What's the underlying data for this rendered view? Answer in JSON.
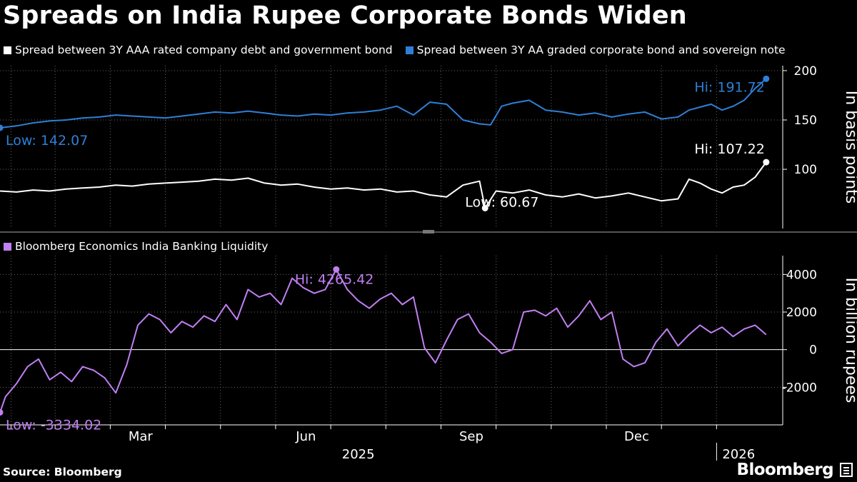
{
  "title": "Spreads on India Rupee Corporate Bonds Widen",
  "source": "Source: Bloomberg",
  "brand": "Bloomberg",
  "colors": {
    "white": "#ffffff",
    "blue": "#2f7fd6",
    "purple": "#c17ff2",
    "grid": "#666666"
  },
  "chart_data": [
    {
      "type": "line",
      "panel": "top",
      "ylabel": "In basis points",
      "ylim": [
        40,
        205
      ],
      "yticks": [
        100,
        150,
        200
      ],
      "x_range": [
        0,
        14.2
      ],
      "x_ticks": [
        {
          "pos": 3,
          "label": "Mar"
        },
        {
          "pos": 6,
          "label": "Jun"
        },
        {
          "pos": 9,
          "label": "Sep"
        },
        {
          "pos": 12,
          "label": "Dec"
        }
      ],
      "year_labels": [
        {
          "pos": 6.5,
          "label": "2025"
        },
        {
          "pos": 13.4,
          "label": "2026"
        }
      ],
      "series": [
        {
          "name": "Spread between 3Y AAA rated company debt and government bond",
          "color": "#ffffff",
          "x": [
            0,
            0.3,
            0.6,
            0.9,
            1.2,
            1.5,
            1.8,
            2.1,
            2.4,
            2.7,
            3.0,
            3.3,
            3.6,
            3.9,
            4.2,
            4.5,
            4.8,
            5.1,
            5.4,
            5.7,
            6.0,
            6.3,
            6.6,
            6.9,
            7.2,
            7.5,
            7.8,
            8.1,
            8.4,
            8.7,
            8.8,
            9.0,
            9.3,
            9.6,
            9.9,
            10.2,
            10.5,
            10.8,
            11.1,
            11.4,
            11.7,
            12.0,
            12.3,
            12.5,
            12.7,
            12.9,
            13.1,
            13.3,
            13.5,
            13.7,
            13.9
          ],
          "values": [
            78,
            77,
            79,
            78,
            80,
            81,
            82,
            84,
            83,
            85,
            86,
            87,
            88,
            90,
            89,
            91,
            86,
            84,
            85,
            82,
            80,
            81,
            79,
            80,
            77,
            78,
            74,
            72,
            84,
            88,
            60.67,
            78,
            76,
            79,
            74,
            72,
            75,
            71,
            73,
            76,
            72,
            68,
            70,
            90,
            86,
            80,
            76,
            82,
            84,
            92,
            107.22
          ],
          "annotations": [
            {
              "label": "Hi: 107.22",
              "x": 13.9,
              "y": 107.22
            },
            {
              "label": "Low: 60.67",
              "x": 8.8,
              "y": 60.67
            }
          ]
        },
        {
          "name": "Spread between 3Y AA graded corporate bond and sovereign note",
          "color": "#2f7fd6",
          "x": [
            0,
            0.3,
            0.6,
            0.9,
            1.2,
            1.5,
            1.8,
            2.1,
            2.4,
            2.7,
            3.0,
            3.3,
            3.6,
            3.9,
            4.2,
            4.5,
            4.8,
            5.1,
            5.4,
            5.7,
            6.0,
            6.3,
            6.6,
            6.9,
            7.2,
            7.5,
            7.8,
            8.1,
            8.4,
            8.7,
            8.9,
            9.1,
            9.3,
            9.6,
            9.9,
            10.2,
            10.5,
            10.8,
            11.1,
            11.4,
            11.7,
            12.0,
            12.3,
            12.5,
            12.7,
            12.9,
            13.1,
            13.3,
            13.5,
            13.7,
            13.9
          ],
          "values": [
            142.07,
            144,
            147,
            149,
            150,
            152,
            153,
            155,
            154,
            153,
            152,
            154,
            156,
            158,
            157,
            159,
            157,
            155,
            154,
            156,
            155,
            157,
            158,
            160,
            164,
            155,
            168,
            166,
            150,
            146,
            145,
            164,
            167,
            170,
            160,
            158,
            155,
            157,
            153,
            156,
            158,
            151,
            153,
            160,
            163,
            166,
            160,
            164,
            170,
            182,
            191.72
          ],
          "annotations": [
            {
              "label": "Hi: 191.72",
              "x": 13.9,
              "y": 191.72
            },
            {
              "label": "Low: 142.07",
              "x": 0,
              "y": 142.07
            }
          ]
        }
      ]
    },
    {
      "type": "line",
      "panel": "bottom",
      "ylabel": "In billion rupees",
      "ylim": [
        -4000,
        5000
      ],
      "yticks": [
        -2000,
        0,
        2000,
        4000
      ],
      "x_range": [
        0,
        14.2
      ],
      "series": [
        {
          "name": "Bloomberg Economics India Banking Liquidity",
          "color": "#c17ff2",
          "x": [
            0,
            0.1,
            0.3,
            0.5,
            0.7,
            0.9,
            1.1,
            1.3,
            1.5,
            1.7,
            1.9,
            2.1,
            2.3,
            2.5,
            2.7,
            2.9,
            3.1,
            3.3,
            3.5,
            3.7,
            3.9,
            4.1,
            4.3,
            4.5,
            4.7,
            4.9,
            5.1,
            5.3,
            5.5,
            5.7,
            5.9,
            6.1,
            6.3,
            6.5,
            6.7,
            6.9,
            7.1,
            7.3,
            7.5,
            7.7,
            7.9,
            8.1,
            8.3,
            8.5,
            8.7,
            8.9,
            9.1,
            9.3,
            9.5,
            9.7,
            9.9,
            10.1,
            10.3,
            10.5,
            10.7,
            10.9,
            11.1,
            11.3,
            11.5,
            11.7,
            11.9,
            12.1,
            12.3,
            12.5,
            12.7,
            12.9,
            13.1,
            13.3,
            13.5,
            13.7,
            13.9
          ],
          "values": [
            -3334.02,
            -2500,
            -1800,
            -900,
            -500,
            -1600,
            -1200,
            -1700,
            -900,
            -1100,
            -1500,
            -2300,
            -800,
            1300,
            1900,
            1600,
            900,
            1500,
            1200,
            1800,
            1500,
            2400,
            1600,
            3200,
            2800,
            3000,
            2400,
            3800,
            3300,
            3000,
            3200,
            4265.42,
            3200,
            2600,
            2200,
            2700,
            3000,
            2400,
            2800,
            100,
            -700,
            500,
            1600,
            1900,
            900,
            400,
            -200,
            0,
            2000,
            2100,
            1800,
            2200,
            1200,
            1800,
            2600,
            1600,
            2000,
            -500,
            -900,
            -700,
            400,
            1100,
            200,
            800,
            1300,
            900,
            1200,
            700,
            1100,
            1300,
            800
          ],
          "annotations": [
            {
              "label": "Hi: 4265.42",
              "x": 6.1,
              "y": 4265.42
            },
            {
              "label": "Low: -3334.02",
              "x": 0,
              "y": -3334.02
            }
          ]
        }
      ]
    }
  ]
}
